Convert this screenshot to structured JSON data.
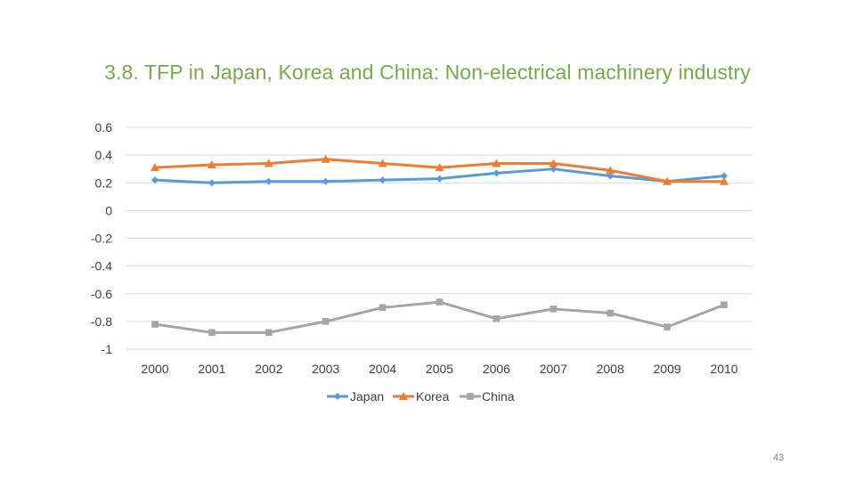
{
  "slide": {
    "title": "3.8. TFP in Japan, Korea and China: Non-electrical machinery industry",
    "page_number": "43"
  },
  "chart_data": {
    "type": "line",
    "x": [
      "2000",
      "2001",
      "2002",
      "2003",
      "2004",
      "2005",
      "2006",
      "2007",
      "2008",
      "2009",
      "2010"
    ],
    "y_ticks": [
      "0.6",
      "0.4",
      "0.2",
      "0",
      "-0.2",
      "-0.4",
      "-0.6",
      "-0.8",
      "-1"
    ],
    "ylim": [
      -1,
      0.6
    ],
    "grid": true,
    "legend_position": "bottom",
    "series": [
      {
        "name": "Japan",
        "color": "#5B9BD5",
        "marker": "diamond",
        "values": [
          0.22,
          0.2,
          0.21,
          0.21,
          0.22,
          0.23,
          0.27,
          0.3,
          0.25,
          0.21,
          0.25
        ]
      },
      {
        "name": "Korea",
        "color": "#ED7D31",
        "marker": "triangle",
        "values": [
          0.31,
          0.33,
          0.34,
          0.37,
          0.34,
          0.31,
          0.34,
          0.34,
          0.29,
          0.21,
          0.21
        ]
      },
      {
        "name": "China",
        "color": "#A5A5A5",
        "marker": "square",
        "values": [
          -0.82,
          -0.88,
          -0.88,
          -0.8,
          -0.7,
          -0.66,
          -0.78,
          -0.71,
          -0.74,
          -0.84,
          -0.68
        ]
      }
    ]
  }
}
